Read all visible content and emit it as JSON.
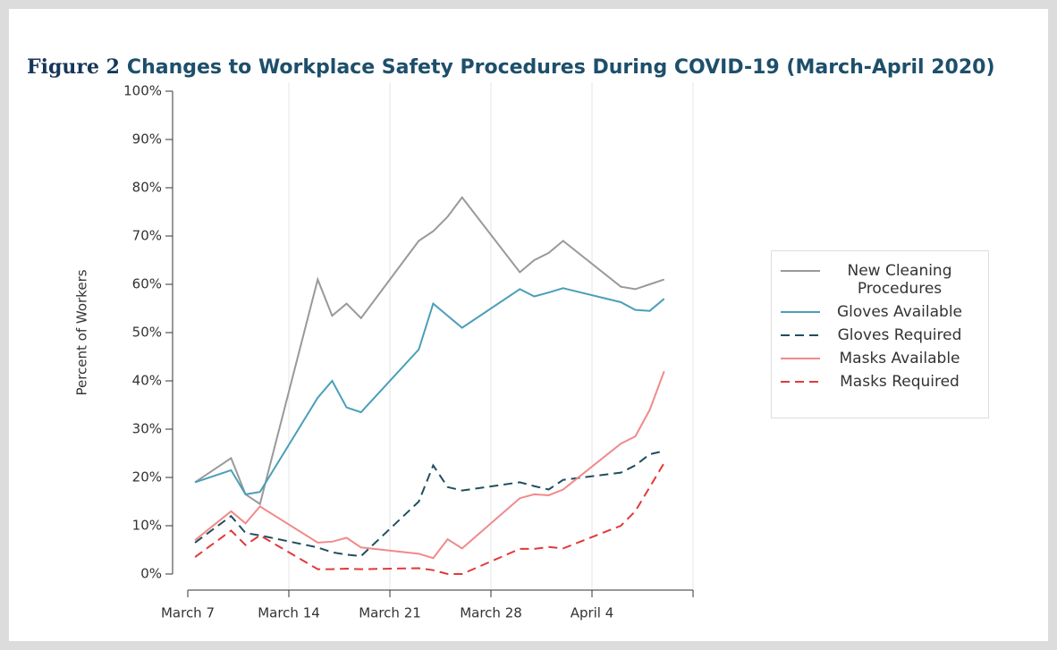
{
  "chart_data": {
    "type": "line",
    "figure_label": "Figure 2",
    "title": "Changes to Workplace Safety Procedures During COVID-19 (March-April 2020)",
    "ylabel": "Percent of Workers",
    "x": [
      0.5,
      3,
      4,
      5,
      9,
      10,
      11,
      12,
      16,
      17,
      18,
      19,
      23,
      24,
      25,
      26,
      30,
      31,
      32,
      33
    ],
    "xlim": [
      0,
      35
    ],
    "xticks": [
      {
        "value": 0,
        "label": "March 7"
      },
      {
        "value": 7,
        "label": "March 14"
      },
      {
        "value": 14,
        "label": "March 21"
      },
      {
        "value": 21,
        "label": "March 28"
      },
      {
        "value": 28,
        "label": "April 4"
      }
    ],
    "ylim": [
      0,
      100
    ],
    "yticks": [
      {
        "value": 0,
        "label": "0%"
      },
      {
        "value": 10,
        "label": "10%"
      },
      {
        "value": 20,
        "label": "20%"
      },
      {
        "value": 30,
        "label": "30%"
      },
      {
        "value": 40,
        "label": "40%"
      },
      {
        "value": 50,
        "label": "50%"
      },
      {
        "value": 60,
        "label": "60%"
      },
      {
        "value": 70,
        "label": "70%"
      },
      {
        "value": 80,
        "label": "80%"
      },
      {
        "value": 90,
        "label": "90%"
      },
      {
        "value": 100,
        "label": "100%"
      }
    ],
    "grid": true,
    "legend": "right",
    "series": [
      {
        "name": "New Cleaning Procedures",
        "color": "#999999",
        "dash": false,
        "values": [
          19,
          24,
          16.5,
          14.5,
          61,
          53.5,
          56,
          53,
          69,
          71,
          74,
          78,
          62.5,
          65,
          66.5,
          69,
          59.5,
          59,
          60,
          61
        ]
      },
      {
        "name": "Gloves Available",
        "color": "#4a9fb8",
        "dash": false,
        "values": [
          19,
          21.5,
          16.5,
          17,
          36.5,
          40,
          34.5,
          33.5,
          46.5,
          56,
          53.5,
          51,
          59,
          57.5,
          58.3,
          59.2,
          56.3,
          54.7,
          54.5,
          57
        ]
      },
      {
        "name": "Gloves Required",
        "color": "#1f4e5f",
        "dash": true,
        "values": [
          6.5,
          12,
          8.5,
          8,
          5.5,
          4.5,
          4,
          3.7,
          15,
          22.5,
          18,
          17.3,
          19,
          18.2,
          17.5,
          19.5,
          21,
          22.5,
          24.8,
          25.5
        ]
      },
      {
        "name": "Masks Available",
        "color": "#f08a8a",
        "dash": false,
        "values": [
          7,
          13,
          10.5,
          14,
          6.5,
          6.7,
          7.5,
          5.5,
          4.2,
          3.3,
          7.2,
          5.3,
          15.7,
          16.5,
          16.3,
          17.5,
          27,
          28.5,
          34,
          42
        ]
      },
      {
        "name": "Masks Required",
        "color": "#e03a3a",
        "dash": true,
        "values": [
          3.5,
          9,
          6,
          8,
          1,
          1,
          1.1,
          1,
          1.2,
          0.8,
          0,
          0,
          5.2,
          5.2,
          5.6,
          5.3,
          10,
          13,
          18,
          23
        ]
      }
    ]
  }
}
